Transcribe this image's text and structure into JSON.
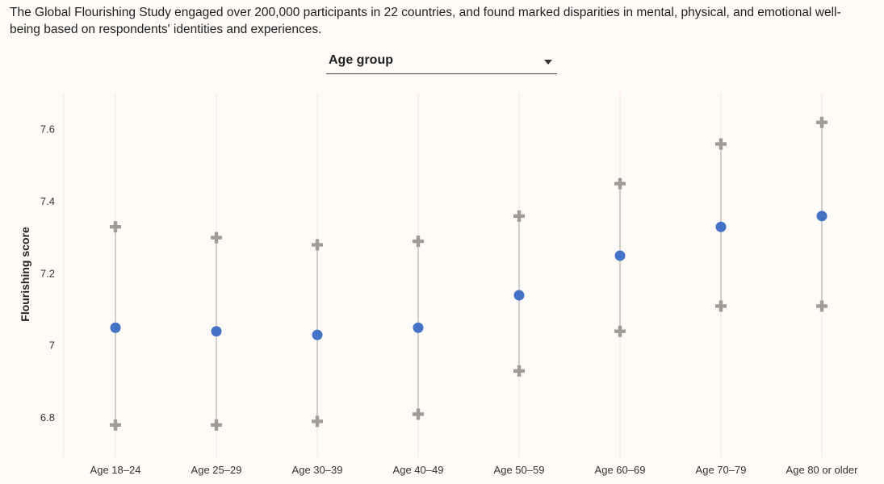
{
  "intro_text": "The Global Flourishing Study engaged over 200,000 participants in 22 countries, and found marked disparities in mental, physical, and emotional well-being based on respondents' identities and experiences.",
  "dropdown": {
    "selected": "Age group",
    "icon": "caret-down-icon"
  },
  "colors": {
    "background": "#fefaf7",
    "mean_point": "#4472c4",
    "range_marker": "#a09a98",
    "range_line": "#c4c0bd",
    "gridline": "#ece6e2"
  },
  "chart_data": {
    "type": "scatter",
    "title": "",
    "xlabel": "",
    "ylabel": "Flourishing score",
    "ylim": [
      6.69,
      7.7
    ],
    "yticks": [
      6.8,
      7,
      7.2,
      7.4,
      7.6
    ],
    "ytick_labels": [
      "6.8",
      "7",
      "7.2",
      "7.4",
      "7.6"
    ],
    "grid": "vertical",
    "categories": [
      "Age 18–24",
      "Age 25–29",
      "Age 30–39",
      "Age 40–49",
      "Age 50–59",
      "Age 60–69",
      "Age 70–79",
      "Age 80 or older"
    ],
    "series": [
      {
        "role": "mean",
        "marker": "circle",
        "values": [
          7.05,
          7.04,
          7.03,
          7.05,
          7.14,
          7.25,
          7.33,
          7.36
        ]
      },
      {
        "role": "upper",
        "marker": "plus",
        "values": [
          7.33,
          7.3,
          7.28,
          7.29,
          7.36,
          7.45,
          7.56,
          7.62
        ]
      },
      {
        "role": "lower",
        "marker": "plus",
        "values": [
          6.78,
          6.78,
          6.79,
          6.81,
          6.93,
          7.04,
          7.11,
          7.11
        ]
      }
    ]
  }
}
